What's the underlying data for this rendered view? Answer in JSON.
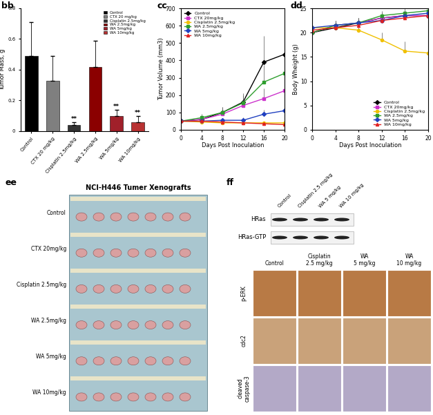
{
  "chart_data": [
    {
      "label": "bb",
      "type": "bar",
      "y_label": "Tumor Mass, g",
      "categories": [
        "Control",
        "CTX 20 mg/kg",
        "Cisplatin 2.5mg/kg",
        "WA 2.5mg/kg",
        "WA 5mg/kg",
        "WA 10mg/kg"
      ],
      "values": [
        0.49,
        0.33,
        0.04,
        0.42,
        0.1,
        0.06
      ],
      "errors": [
        0.22,
        0.16,
        0.02,
        0.17,
        0.04,
        0.04
      ],
      "significance": [
        null,
        null,
        "**",
        null,
        "**",
        "**"
      ],
      "colors": [
        "#000000",
        "#7f7f7f",
        "#333333",
        "#8b0000",
        "#a0202a",
        "#b83232"
      ],
      "legend_entries": [
        "Control",
        "CTX 20 mg/kg",
        "Cisplatin 2.5mg/kg",
        "WA 2.5mg/kg",
        "WA 5mg/kg",
        "WA 10mg/kg"
      ],
      "legend": "upper right",
      "ylim": [
        0,
        0.8
      ],
      "yticks": [
        0,
        0.2,
        0.4,
        0.6,
        0.8
      ]
    },
    {
      "label": "cc",
      "type": "line",
      "y_label": "Tumor Volume (mm3)",
      "x_label": "Days Post Inoculation",
      "x": [
        0,
        4,
        8,
        12,
        16,
        20
      ],
      "series": [
        {
          "name": "Control",
          "color": "#000000",
          "marker": "D",
          "values": [
            50,
            60,
            100,
            160,
            390,
            435
          ],
          "errors": [
            0,
            20,
            30,
            50,
            150,
            260
          ]
        },
        {
          "name": "CTX 20mg/kg",
          "color": "#cc33cc",
          "marker": "s",
          "values": [
            50,
            60,
            90,
            140,
            180,
            225
          ],
          "errors": [
            0,
            15,
            25,
            40,
            60,
            80
          ]
        },
        {
          "name": "Cisplatin 2.5mg/kg",
          "color": "#f0c000",
          "marker": "o",
          "values": [
            50,
            45,
            40,
            40,
            40,
            40
          ],
          "errors": [
            0,
            5,
            5,
            5,
            5,
            5
          ]
        },
        {
          "name": "WA 2.5mg/kg",
          "color": "#2e9e2e",
          "marker": "s",
          "values": [
            50,
            70,
            100,
            155,
            275,
            325
          ],
          "errors": [
            0,
            20,
            30,
            45,
            100,
            130
          ]
        },
        {
          "name": "WA 5mg/kg",
          "color": "#2040c0",
          "marker": "D",
          "values": [
            50,
            50,
            55,
            55,
            90,
            110
          ],
          "errors": [
            0,
            10,
            10,
            15,
            25,
            35
          ]
        },
        {
          "name": "WA 10mg/kg",
          "color": "#e02020",
          "marker": "^",
          "values": [
            50,
            50,
            45,
            40,
            35,
            30
          ],
          "errors": [
            0,
            5,
            5,
            5,
            5,
            5
          ]
        }
      ],
      "legend": "upper left",
      "xlim": [
        0,
        20
      ],
      "xticks": [
        0,
        4,
        8,
        12,
        16,
        20
      ],
      "ylim": [
        0,
        700
      ],
      "yticks": [
        0,
        100,
        200,
        300,
        400,
        500,
        600,
        700
      ]
    },
    {
      "label": "dd",
      "type": "line",
      "y_label": "Body Wheight (g)",
      "x_label": "Days Post Inoculation",
      "x": [
        0,
        4,
        8,
        12,
        16,
        20
      ],
      "series": [
        {
          "name": "Control",
          "color": "#000000",
          "marker": "D",
          "values": [
            20,
            21,
            22,
            23,
            23.5,
            23.5
          ],
          "errors": [
            0,
            1,
            1,
            1,
            1,
            1
          ]
        },
        {
          "name": "CTX 20mg/kg",
          "color": "#cc33cc",
          "marker": "s",
          "values": [
            20,
            21.5,
            22,
            23,
            23.5,
            23.5
          ],
          "errors": [
            0,
            1,
            1,
            1,
            1,
            1
          ]
        },
        {
          "name": "Cisplatin 2.5mg/kg",
          "color": "#f0c000",
          "marker": "o",
          "values": [
            21,
            21,
            20.5,
            18.5,
            16.2,
            15.8
          ],
          "errors": [
            0,
            1,
            1,
            1.5,
            2,
            2.5
          ]
        },
        {
          "name": "WA 2.5mg/kg",
          "color": "#2e9e2e",
          "marker": "s",
          "values": [
            20,
            21.5,
            22,
            23.5,
            24,
            24.5
          ],
          "errors": [
            0,
            1,
            1,
            1,
            1,
            1
          ]
        },
        {
          "name": "WA 5mg/kg",
          "color": "#2040c0",
          "marker": "D",
          "values": [
            21,
            21.5,
            22,
            22.5,
            23.5,
            24
          ],
          "errors": [
            0,
            1,
            1,
            1,
            1,
            1
          ]
        },
        {
          "name": "WA 10mg/kg",
          "color": "#e02020",
          "marker": "^",
          "values": [
            20.5,
            21,
            21.5,
            22.5,
            23,
            23.5
          ],
          "errors": [
            0,
            1,
            1,
            1,
            1,
            1
          ]
        }
      ],
      "legend": "lower right",
      "xlim": [
        0,
        20
      ],
      "xticks": [
        0,
        4,
        8,
        12,
        16,
        20
      ],
      "ylim": [
        0,
        25
      ],
      "yticks": [
        0,
        5,
        10,
        15,
        20,
        25
      ]
    }
  ],
  "panels": {
    "ee": {
      "label": "ee",
      "title": "NCI-H446 Tumer Xenografts",
      "rows": [
        "Control",
        "CTX 20mg/kg",
        "Cisplatin 2.5mg/kg",
        "WA 2.5mg/kg",
        "WA 5mg/kg",
        "WA 10mg/kg"
      ]
    },
    "ff": {
      "label": "ff",
      "blot": {
        "columns": [
          "Control",
          "Cisplatin 2.5 mg/kg",
          "WA 5 mg/kg",
          "WA 10 mg/kg"
        ],
        "rows": [
          "HRas",
          "HRas-GTP"
        ]
      },
      "ihc": {
        "columns": [
          "Control",
          "Cisplatin\n2.5 mg/kg",
          "WA\n5 mg/kg",
          "WA\n10 mg/kg"
        ],
        "rows": [
          "p-ERK",
          "cdc2",
          "cleaved\ncaspase-3"
        ]
      }
    }
  }
}
